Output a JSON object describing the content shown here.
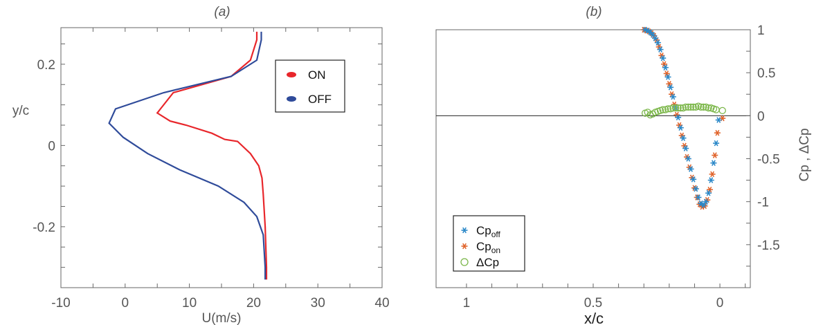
{
  "chart_data": [
    {
      "type": "line",
      "title": "(a)",
      "xlabel": "U(m/s)",
      "ylabel": "y/c",
      "xlim": [
        -10,
        40
      ],
      "ylim": [
        -0.35,
        0.29
      ],
      "xticks": [
        "-10",
        "0",
        "10",
        "20",
        "30",
        "40"
      ],
      "yticks": [
        "0.2",
        "0",
        "-0.2"
      ],
      "xtick_values": [
        -10,
        0,
        10,
        20,
        30,
        40
      ],
      "ytick_values": [
        0.2,
        0,
        -0.2
      ],
      "legend_position": "top-right",
      "colors": {
        "ON": "#e8262b",
        "OFF": "#2f4b9a"
      },
      "series": [
        {
          "name": "ON",
          "y": [
            0.28,
            0.26,
            0.21,
            0.17,
            0.13,
            0.09,
            0.08,
            0.06,
            0.05,
            0.03,
            0.015,
            0.01,
            -0.02,
            -0.05,
            -0.08,
            -0.12,
            -0.2,
            -0.3,
            -0.33
          ],
          "x": [
            20.5,
            20.5,
            19.5,
            16.5,
            7.5,
            5.5,
            5.0,
            7.0,
            9.5,
            13.5,
            15.5,
            17.5,
            19.5,
            20.8,
            21.3,
            21.5,
            21.8,
            22.0,
            22.0
          ]
        },
        {
          "name": "OFF",
          "y": [
            0.28,
            0.26,
            0.21,
            0.17,
            0.13,
            0.09,
            0.055,
            0.02,
            -0.02,
            -0.06,
            -0.1,
            -0.14,
            -0.175,
            -0.22,
            -0.3,
            -0.33
          ],
          "x": [
            21.2,
            21.2,
            20.5,
            16.5,
            6.0,
            -1.5,
            -2.5,
            -0.3,
            3.5,
            8.5,
            14.5,
            18.5,
            20.5,
            21.5,
            21.8,
            21.8
          ]
        }
      ]
    },
    {
      "type": "scatter",
      "title": "(b)",
      "xlabel": "x/c",
      "ylabel": "Cp , ΔCp",
      "xlim": [
        1.12,
        -0.12
      ],
      "ylim": [
        -2.0,
        1.0
      ],
      "xticks": [
        "1",
        "0.5",
        "0"
      ],
      "yticks": [
        "1",
        "0.5",
        "0",
        "-0.5",
        "-1",
        "-1.5"
      ],
      "xtick_values": [
        1,
        0.5,
        0
      ],
      "ytick_values": [
        1,
        0.5,
        0,
        -0.5,
        -1,
        -1.5
      ],
      "legend_position": "bottom-left",
      "colors": {
        "Cp_off": "#2b88c8",
        "Cp_on": "#e0632a",
        "dCp": "#7ab648"
      },
      "legend": [
        {
          "main": "Cp",
          "sub": "off"
        },
        {
          "main": "Cp",
          "sub": "on"
        },
        {
          "main": "ΔCp",
          "sub": ""
        }
      ],
      "series": [
        {
          "name": "Cpoff",
          "x": [
            0.295,
            0.285,
            0.275,
            0.265,
            0.255,
            0.245,
            0.235,
            0.225,
            0.215,
            0.205,
            0.195,
            0.185,
            0.175,
            0.165,
            0.155,
            0.145,
            0.135,
            0.125,
            0.115,
            0.105,
            0.095,
            0.085,
            0.075,
            0.065,
            0.055,
            0.045,
            0.035,
            0.025,
            0.015,
            0.005
          ],
          "y": [
            1.0,
            0.99,
            0.97,
            0.94,
            0.9,
            0.85,
            0.77,
            0.67,
            0.56,
            0.45,
            0.33,
            0.22,
            0.1,
            -0.02,
            -0.14,
            -0.26,
            -0.38,
            -0.5,
            -0.62,
            -0.74,
            -0.85,
            -0.95,
            -1.02,
            -1.04,
            -1.0,
            -0.9,
            -0.75,
            -0.55,
            -0.32,
            -0.05
          ]
        },
        {
          "name": "Cpon",
          "x": [
            0.3,
            0.29,
            0.28,
            0.27,
            0.26,
            0.25,
            0.24,
            0.23,
            0.22,
            0.21,
            0.2,
            0.19,
            0.18,
            0.17,
            0.16,
            0.15,
            0.14,
            0.13,
            0.12,
            0.11,
            0.1,
            0.09,
            0.08,
            0.07,
            0.06,
            0.05,
            0.04,
            0.03,
            0.02,
            0.01,
            -0.01
          ],
          "y": [
            1.0,
            0.99,
            0.98,
            0.96,
            0.93,
            0.88,
            0.8,
            0.7,
            0.6,
            0.49,
            0.37,
            0.25,
            0.13,
            0.01,
            -0.11,
            -0.23,
            -0.35,
            -0.48,
            -0.6,
            -0.72,
            -0.84,
            -0.95,
            -1.03,
            -1.06,
            -1.05,
            -0.98,
            -0.86,
            -0.68,
            -0.46,
            -0.2,
            -0.03
          ]
        },
        {
          "name": "ΔCp",
          "x": [
            0.295,
            0.285,
            0.275,
            0.265,
            0.255,
            0.245,
            0.235,
            0.225,
            0.215,
            0.205,
            0.195,
            0.185,
            0.175,
            0.165,
            0.155,
            0.145,
            0.135,
            0.125,
            0.115,
            0.105,
            0.095,
            0.085,
            0.075,
            0.065,
            0.055,
            0.045,
            0.035,
            0.025,
            0.015,
            -0.01
          ],
          "y": [
            0.03,
            0.04,
            0.01,
            0.02,
            0.04,
            0.05,
            0.06,
            0.07,
            0.07,
            0.08,
            0.08,
            0.09,
            0.09,
            0.09,
            0.09,
            0.09,
            0.1,
            0.1,
            0.1,
            0.1,
            0.1,
            0.11,
            0.1,
            0.1,
            0.1,
            0.09,
            0.09,
            0.08,
            0.07,
            0.06
          ]
        }
      ]
    }
  ]
}
